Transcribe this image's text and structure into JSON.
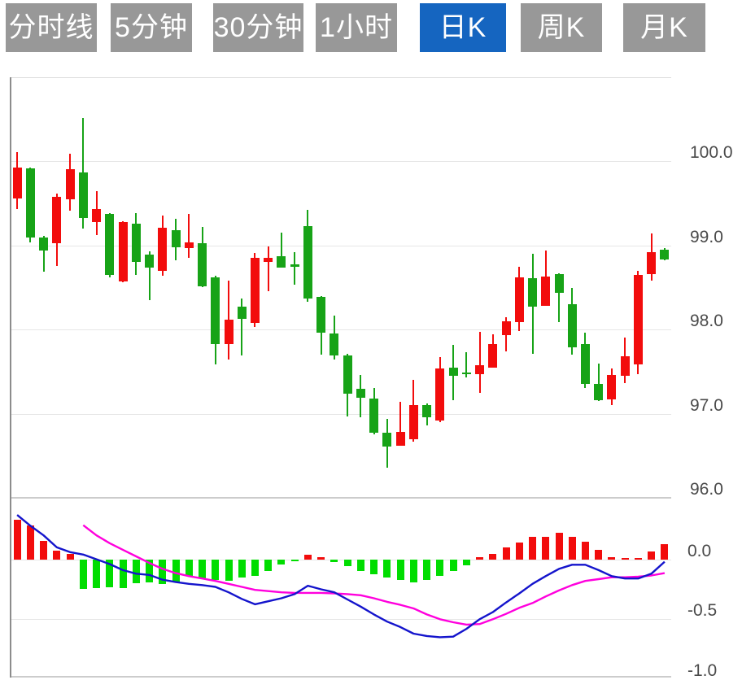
{
  "toolbar": {
    "tabs": [
      {
        "label": "分时线",
        "active": false
      },
      {
        "label": "5分钟",
        "active": false
      },
      {
        "label": "30分钟",
        "active": false
      },
      {
        "label": "1小时",
        "active": false
      },
      {
        "label": "日K",
        "active": true
      },
      {
        "label": "周K",
        "active": false
      },
      {
        "label": "月K",
        "active": false
      }
    ]
  },
  "colors": {
    "tab_bg": "#989898",
    "tab_active_bg": "#1565c0",
    "tab_text": "#ffffff",
    "up": "#f20c0c",
    "down": "#17a317",
    "hist_up": "#f20c0c",
    "hist_down": "#00dd00",
    "dif_line": "#1414cc",
    "dea_line": "#ff00dd",
    "grid": "#e6e6e6",
    "frame": "#cccccc",
    "left_border": "#8c8c8c",
    "axis_text": "#4a4a4a"
  },
  "chart_data": {
    "type": "candlestick",
    "subtype": "candles-with-macd-subpanel",
    "legend": "none",
    "grid": "on",
    "price_axis": {
      "side": "right",
      "ticks": [
        100.0,
        99.0,
        98.0,
        97.0,
        96.0
      ],
      "labels": [
        "100.0",
        "99.0",
        "98.0",
        "97.0",
        "96.0"
      ],
      "range": [
        96.0,
        101.0
      ]
    },
    "macd_axis": {
      "side": "right",
      "ticks": [
        0.0,
        -0.5,
        -1.0
      ],
      "labels": [
        "0.0",
        "-0.5",
        "-1.0"
      ],
      "range": [
        -0.98,
        0.5
      ]
    },
    "candle_format": "[open, high, low, close] — red=up, green=down",
    "candles": [
      [
        99.56,
        100.11,
        99.43,
        99.93
      ],
      [
        99.92,
        99.93,
        99.04,
        99.09
      ],
      [
        99.1,
        99.11,
        98.69,
        98.94
      ],
      [
        99.03,
        99.62,
        98.76,
        99.58
      ],
      [
        99.55,
        100.09,
        99.41,
        99.91
      ],
      [
        99.87,
        100.52,
        99.2,
        99.33
      ],
      [
        99.28,
        99.65,
        99.12,
        99.43
      ],
      [
        99.38,
        99.39,
        98.62,
        98.65
      ],
      [
        98.57,
        99.29,
        98.56,
        99.28
      ],
      [
        99.26,
        99.39,
        98.65,
        98.8
      ],
      [
        98.89,
        98.93,
        98.35,
        98.74
      ],
      [
        98.7,
        99.36,
        98.64,
        99.21
      ],
      [
        99.18,
        99.32,
        98.82,
        98.98
      ],
      [
        98.97,
        99.38,
        98.85,
        99.04
      ],
      [
        99.03,
        99.22,
        98.5,
        98.51
      ],
      [
        98.62,
        98.64,
        97.59,
        97.83
      ],
      [
        97.83,
        98.58,
        97.64,
        98.12
      ],
      [
        98.27,
        98.37,
        97.69,
        98.13
      ],
      [
        98.08,
        98.91,
        98.03,
        98.85
      ],
      [
        98.8,
        98.99,
        98.46,
        98.85
      ],
      [
        98.87,
        99.15,
        98.74,
        98.74
      ],
      [
        98.78,
        98.92,
        98.53,
        98.75
      ],
      [
        99.23,
        99.42,
        98.33,
        98.37
      ],
      [
        98.39,
        98.4,
        97.7,
        97.96
      ],
      [
        97.95,
        98.17,
        97.64,
        97.69
      ],
      [
        97.69,
        97.71,
        96.97,
        97.24
      ],
      [
        97.3,
        97.46,
        96.96,
        97.19
      ],
      [
        97.18,
        97.31,
        96.75,
        96.77
      ],
      [
        96.77,
        96.94,
        96.36,
        96.61
      ],
      [
        96.62,
        97.14,
        96.62,
        96.78
      ],
      [
        96.7,
        97.4,
        96.67,
        97.1
      ],
      [
        97.1,
        97.12,
        96.86,
        96.96
      ],
      [
        96.92,
        97.67,
        96.9,
        97.54
      ],
      [
        97.55,
        97.82,
        97.16,
        97.45
      ],
      [
        97.49,
        97.73,
        97.43,
        97.47
      ],
      [
        97.47,
        97.97,
        97.25,
        97.58
      ],
      [
        97.55,
        97.94,
        97.55,
        97.83
      ],
      [
        97.93,
        98.15,
        97.74,
        98.1
      ],
      [
        98.09,
        98.75,
        97.98,
        98.62
      ],
      [
        98.61,
        98.9,
        97.71,
        98.27
      ],
      [
        98.28,
        98.94,
        98.28,
        98.63
      ],
      [
        98.66,
        98.67,
        98.09,
        98.44
      ],
      [
        98.3,
        98.5,
        97.7,
        97.79
      ],
      [
        97.83,
        97.96,
        97.3,
        97.35
      ],
      [
        97.35,
        97.6,
        97.15,
        97.16
      ],
      [
        97.17,
        97.54,
        97.1,
        97.46
      ],
      [
        97.45,
        97.91,
        97.36,
        97.68
      ],
      [
        97.59,
        98.7,
        97.47,
        98.65
      ],
      [
        98.66,
        99.14,
        98.58,
        98.92
      ],
      [
        98.95,
        98.97,
        98.82,
        98.83
      ]
    ],
    "macd": {
      "histogram": [
        0.33,
        0.28,
        0.155,
        0.07,
        0.045,
        -0.25,
        -0.24,
        -0.235,
        -0.24,
        -0.2,
        -0.19,
        -0.21,
        -0.19,
        -0.14,
        -0.16,
        -0.17,
        -0.18,
        -0.15,
        -0.14,
        -0.1,
        -0.045,
        -0.02,
        0.04,
        0.015,
        -0.025,
        -0.06,
        -0.1,
        -0.125,
        -0.15,
        -0.17,
        -0.19,
        -0.17,
        -0.14,
        -0.1,
        -0.05,
        0.015,
        0.045,
        0.1,
        0.14,
        0.185,
        0.19,
        0.22,
        0.19,
        0.145,
        0.08,
        0.02,
        0.01,
        0.01,
        0.065,
        0.13
      ],
      "dif": [
        0.37,
        0.28,
        0.2,
        0.1,
        0.06,
        0.04,
        0.0,
        -0.04,
        -0.09,
        -0.12,
        -0.13,
        -0.17,
        -0.19,
        -0.205,
        -0.215,
        -0.23,
        -0.275,
        -0.33,
        -0.375,
        -0.35,
        -0.325,
        -0.29,
        -0.22,
        -0.25,
        -0.275,
        -0.335,
        -0.395,
        -0.46,
        -0.52,
        -0.565,
        -0.62,
        -0.64,
        -0.65,
        -0.645,
        -0.58,
        -0.5,
        -0.44,
        -0.36,
        -0.285,
        -0.205,
        -0.14,
        -0.08,
        -0.045,
        -0.045,
        -0.09,
        -0.14,
        -0.16,
        -0.16,
        -0.12,
        -0.02
      ],
      "dea": [
        null,
        null,
        null,
        null,
        null,
        0.285,
        0.2,
        0.135,
        0.08,
        0.025,
        -0.03,
        -0.08,
        -0.115,
        -0.14,
        -0.16,
        -0.18,
        -0.205,
        -0.23,
        -0.255,
        -0.265,
        -0.275,
        -0.28,
        -0.28,
        -0.28,
        -0.285,
        -0.29,
        -0.3,
        -0.325,
        -0.355,
        -0.38,
        -0.41,
        -0.46,
        -0.5,
        -0.525,
        -0.545,
        -0.54,
        -0.5,
        -0.455,
        -0.405,
        -0.365,
        -0.31,
        -0.26,
        -0.215,
        -0.18,
        -0.165,
        -0.15,
        -0.15,
        -0.145,
        -0.135,
        -0.115
      ]
    }
  }
}
